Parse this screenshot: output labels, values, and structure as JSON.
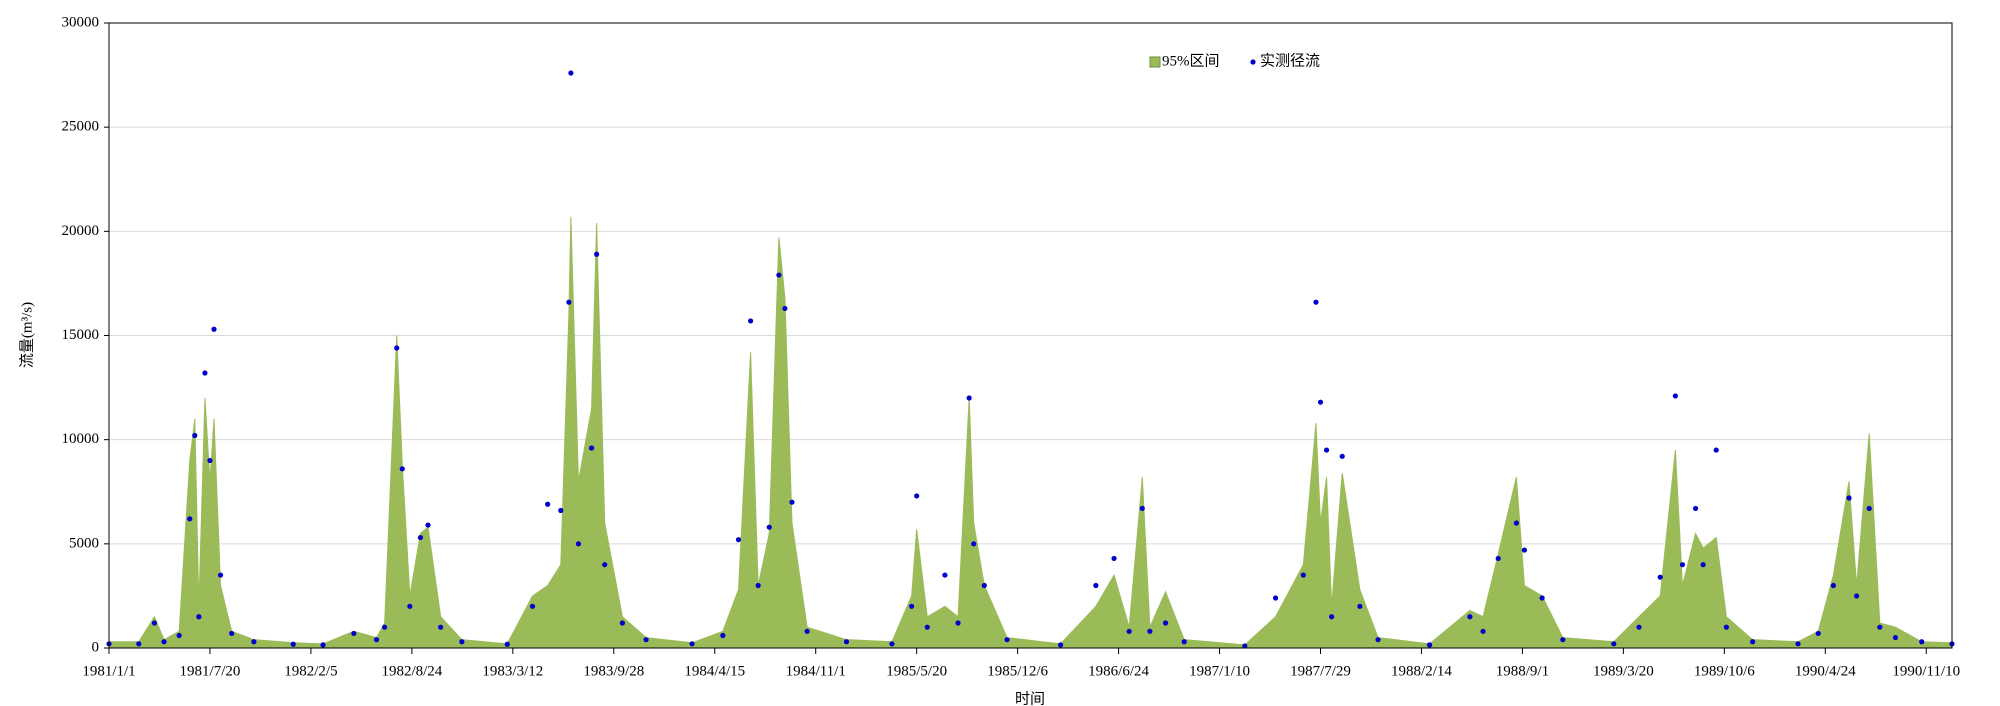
{
  "chart_data": {
    "type": "area-scatter",
    "y_label": "流量(m³/s)",
    "x_label": "时间",
    "legend": "upper center",
    "grid": true,
    "ylim": [
      0,
      30000
    ],
    "yticks": [
      0,
      5000,
      10000,
      15000,
      20000,
      25000,
      30000
    ],
    "xlim": [
      "1981/1/1",
      "1990/12/31"
    ],
    "xticks": [
      "1981/1/1",
      "1981/7/20",
      "1982/2/5",
      "1982/8/24",
      "1983/3/12",
      "1983/9/28",
      "1984/4/15",
      "1984/11/1",
      "1985/5/20",
      "1985/12/6",
      "1986/6/24",
      "1987/1/10",
      "1987/7/29",
      "1988/2/14",
      "1988/9/1",
      "1989/3/20",
      "1989/10/6",
      "1990/4/24",
      "1990/11/10"
    ],
    "x": [
      "1981/1/1",
      "1981/3/1",
      "1981/4/1",
      "1981/4/20",
      "1981/5/20",
      "1981/6/10",
      "1981/6/20",
      "1981/6/28",
      "1981/7/10",
      "1981/7/20",
      "1981/7/28",
      "1981/8/10",
      "1981/9/1",
      "1981/10/15",
      "1982/1/1",
      "1982/3/1",
      "1982/5/1",
      "1982/6/15",
      "1982/7/1",
      "1982/7/25",
      "1982/8/5",
      "1982/8/20",
      "1982/9/10",
      "1982/9/25",
      "1982/10/20",
      "1982/12/1",
      "1983/3/1",
      "1983/4/20",
      "1983/5/20",
      "1983/6/15",
      "1983/7/1",
      "1983/7/5",
      "1983/7/20",
      "1983/8/15",
      "1983/8/25",
      "1983/9/10",
      "1983/10/15",
      "1983/12/1",
      "1984/3/1",
      "1984/5/1",
      "1984/6/1",
      "1984/6/25",
      "1984/7/10",
      "1984/8/1",
      "1984/8/20",
      "1984/9/1",
      "1984/9/15",
      "1984/10/15",
      "1985/1/1",
      "1985/4/1",
      "1985/5/10",
      "1985/5/20",
      "1985/6/10",
      "1985/7/15",
      "1985/8/10",
      "1985/9/1",
      "1985/9/10",
      "1985/10/1",
      "1985/11/15",
      "1986/3/1",
      "1986/5/10",
      "1986/6/15",
      "1986/7/15",
      "1986/8/10",
      "1986/8/25",
      "1986/9/25",
      "1986/11/1",
      "1987/3/1",
      "1987/5/1",
      "1987/6/25",
      "1987/7/20",
      "1987/7/29",
      "1987/8/10",
      "1987/8/20",
      "1987/9/10",
      "1987/10/15",
      "1987/11/20",
      "1988/3/1",
      "1988/5/20",
      "1988/6/15",
      "1988/7/15",
      "1988/8/20",
      "1988/9/5",
      "1988/10/10",
      "1988/11/20",
      "1989/3/1",
      "1989/4/20",
      "1989/6/1",
      "1989/7/1",
      "1989/7/15",
      "1989/8/10",
      "1989/8/25",
      "1989/9/20",
      "1989/10/10",
      "1989/12/1",
      "1990/3/1",
      "1990/4/10",
      "1990/5/10",
      "1990/6/10",
      "1990/6/25",
      "1990/7/20",
      "1990/8/10",
      "1990/9/10",
      "1990/11/1",
      "1990/12/31"
    ],
    "series": [
      {
        "name": "95%区间",
        "type": "area",
        "color": "#9bbb59",
        "values": [
          300,
          300,
          1500,
          400,
          800,
          9000,
          11000,
          2000,
          12000,
          8000,
          11000,
          3000,
          800,
          400,
          250,
          200,
          800,
          500,
          1200,
          15000,
          8800,
          2500,
          5500,
          5800,
          1500,
          400,
          200,
          2500,
          3000,
          4000,
          16000,
          20700,
          8000,
          11500,
          20400,
          6000,
          1500,
          500,
          250,
          800,
          2800,
          14200,
          3000,
          5500,
          19700,
          16800,
          6000,
          1000,
          400,
          300,
          2500,
          5700,
          1500,
          2000,
          1500,
          12000,
          6000,
          3000,
          500,
          200,
          2000,
          3500,
          1000,
          8200,
          1000,
          2700,
          400,
          150,
          1500,
          4000,
          10800,
          6000,
          8200,
          2000,
          8400,
          2800,
          500,
          200,
          1800,
          1500,
          4500,
          8200,
          3000,
          2500,
          500,
          300,
          1500,
          2500,
          9500,
          3000,
          5500,
          4800,
          5300,
          1500,
          400,
          300,
          800,
          3500,
          8000,
          3000,
          10300,
          1200,
          1000,
          300,
          250
        ]
      },
      {
        "name": "实测径流",
        "type": "scatter",
        "color": "#0000cc",
        "values": [
          200,
          200,
          1200,
          300,
          600,
          6200,
          10200,
          1500,
          13200,
          9000,
          15300,
          3500,
          700,
          300,
          180,
          150,
          700,
          400,
          1000,
          14400,
          8600,
          2000,
          5300,
          5900,
          1000,
          300,
          180,
          2000,
          6900,
          6600,
          16600,
          27600,
          5000,
          9600,
          18900,
          4000,
          1200,
          400,
          200,
          600,
          5200,
          15700,
          3000,
          5800,
          17900,
          16300,
          7000,
          800,
          300,
          200,
          2000,
          7300,
          1000,
          3500,
          1200,
          12000,
          5000,
          3000,
          400,
          150,
          3000,
          4300,
          800,
          6700,
          800,
          1200,
          300,
          100,
          2400,
          3500,
          16600,
          11800,
          9500,
          1500,
          9200,
          2000,
          400,
          150,
          1500,
          800,
          4300,
          6000,
          4700,
          2400,
          400,
          200,
          1000,
          3400,
          12100,
          4000,
          6700,
          4000,
          9500,
          1000,
          300,
          200,
          700,
          3000,
          7200,
          2500,
          6700,
          1000,
          500,
          300,
          200
        ]
      }
    ]
  }
}
